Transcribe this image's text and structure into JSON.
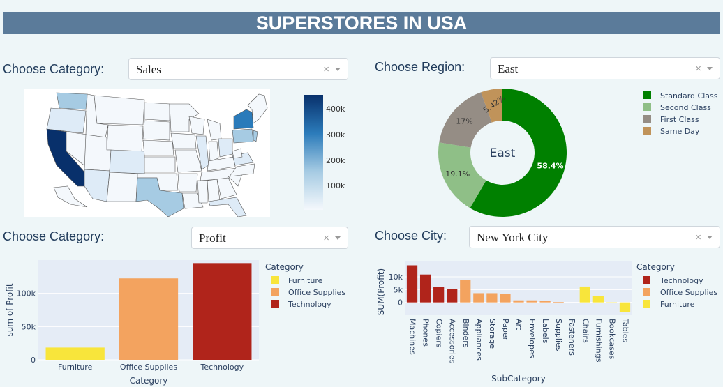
{
  "header": {
    "title": "SUPERSTORES IN USA"
  },
  "controls": {
    "map_category": {
      "label": "Choose Category:",
      "value": "Sales"
    },
    "region": {
      "label": "Choose Region:",
      "value": "East"
    },
    "bar_category": {
      "label": "Choose Category:",
      "value": "Profit"
    },
    "city": {
      "label": "Choose City:",
      "value": "New York City"
    },
    "clear_glyph": "×"
  },
  "map": {
    "colorbar_ticks": [
      "400k",
      "300k",
      "200k",
      "100k"
    ],
    "colors": {
      "high": "#08306b",
      "mid": "#2b7bba",
      "light": "#a6cbe3",
      "pale": "#deebf7",
      "lowest": "#f4f8fc"
    }
  },
  "chart_data": [
    {
      "type": "pie",
      "title": "East",
      "legend_position": "right",
      "labels": [
        "Standard Class",
        "Second Class",
        "First Class",
        "Same Day"
      ],
      "values": [
        58.4,
        19.1,
        17,
        5.42
      ],
      "value_labels": [
        "58.4%",
        "19.1%",
        "17%",
        "5.42%"
      ],
      "colors": [
        "#008000",
        "#8fbf87",
        "#958d85",
        "#c0935a"
      ]
    },
    {
      "type": "bar",
      "categories": [
        "Furniture",
        "Office Supplies",
        "Technology"
      ],
      "values": [
        18451,
        122491,
        145454
      ],
      "xlabel": "Category",
      "ylabel": "sum of Profit",
      "ylim": [
        0,
        150000
      ],
      "y_ticks": [
        "0",
        "50k",
        "100k"
      ],
      "legend_title": "Category",
      "legend_position": "right",
      "colors": [
        "#f8e53b",
        "#f3a35f",
        "#b0241b"
      ]
    },
    {
      "type": "bar",
      "categories": [
        "Machines",
        "Phones",
        "Copiers",
        "Accessories",
        "Binders",
        "Appliances",
        "Storage",
        "Paper",
        "Art",
        "Envelopes",
        "Labels",
        "Supplies",
        "Fasteners",
        "Chairs",
        "Furnishings",
        "Bookcases",
        "Tables"
      ],
      "values": [
        14500,
        10900,
        6100,
        5300,
        8700,
        3600,
        3600,
        3300,
        800,
        800,
        500,
        100,
        0,
        6200,
        2500,
        -100,
        -3800
      ],
      "category_group": [
        "Technology",
        "Technology",
        "Technology",
        "Technology",
        "Office Supplies",
        "Office Supplies",
        "Office Supplies",
        "Office Supplies",
        "Office Supplies",
        "Office Supplies",
        "Office Supplies",
        "Office Supplies",
        "Office Supplies",
        "Furniture",
        "Furniture",
        "Furniture",
        "Furniture"
      ],
      "xlabel": "SubCategory",
      "ylabel": "SUM(Profit)",
      "ylim": [
        -5000,
        16000
      ],
      "y_ticks": [
        "10k",
        "5k",
        "0"
      ],
      "legend_title": "Category",
      "legend_position": "right",
      "legend": [
        "Technology",
        "Office Supplies",
        "Furniture"
      ],
      "colors": {
        "Technology": "#b0241b",
        "Office Supplies": "#f3a35f",
        "Furniture": "#f8e53b"
      }
    }
  ]
}
